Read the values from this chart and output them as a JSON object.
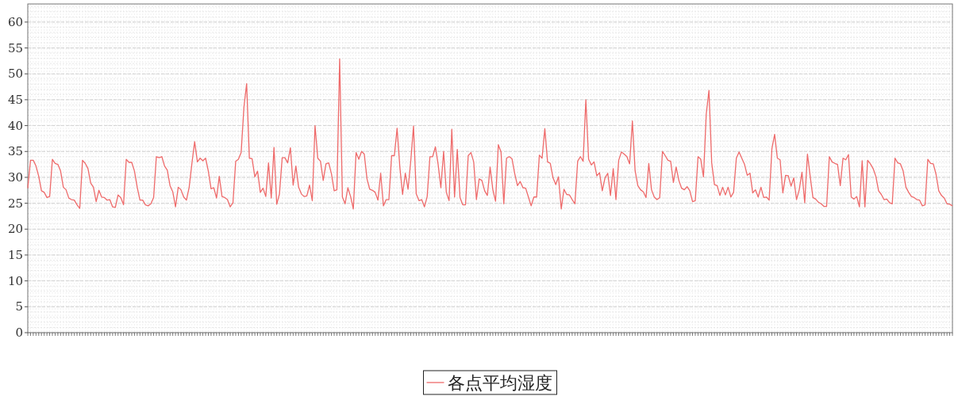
{
  "chart_data": {
    "type": "line",
    "categories": [
      null,
      null,
      null,
      null,
      null,
      null,
      null,
      null,
      null,
      null,
      null,
      null,
      null,
      null,
      null,
      null,
      null,
      null,
      null,
      null,
      null,
      null,
      null,
      null,
      null,
      null,
      null,
      null,
      null,
      null,
      null,
      null,
      null,
      null,
      null,
      null,
      null,
      null,
      null,
      null,
      null,
      null,
      null,
      null,
      null,
      null,
      null,
      null,
      null,
      null,
      null,
      null,
      null,
      null,
      null,
      null,
      null,
      null,
      null,
      null,
      null,
      null,
      null,
      null,
      null,
      null,
      null,
      null,
      null,
      null,
      null,
      null,
      null,
      null,
      null,
      null,
      null,
      null,
      null,
      null,
      null,
      null,
      null,
      null,
      null,
      null,
      null,
      null,
      null,
      null,
      null,
      null,
      null,
      null,
      null,
      null,
      null,
      null,
      null,
      null,
      null,
      null,
      null,
      null,
      null,
      null,
      null,
      null,
      null,
      null,
      null,
      null,
      null,
      null,
      null,
      null,
      null,
      null,
      null,
      null,
      null,
      null,
      null,
      null,
      null,
      null,
      null,
      null,
      null,
      null,
      null,
      null,
      null,
      null,
      null,
      null,
      null,
      null,
      null,
      null,
      null,
      null,
      null,
      null,
      null,
      null,
      null,
      null,
      null,
      null,
      null,
      null,
      null,
      null,
      null,
      null,
      null,
      null,
      null,
      null,
      null,
      null,
      null,
      null,
      null,
      null,
      null,
      null,
      null,
      null,
      null,
      null,
      null,
      null,
      null,
      null,
      null,
      null,
      null,
      null,
      null,
      null,
      null,
      null,
      null,
      null,
      null,
      null,
      null,
      null,
      null,
      null,
      null,
      null,
      null,
      null,
      null,
      null,
      null,
      null,
      null,
      null,
      null,
      null,
      null,
      null,
      null,
      null,
      null,
      null,
      null,
      null,
      null,
      null,
      null,
      null,
      null,
      null,
      null,
      null,
      null,
      null,
      null,
      null,
      null,
      null,
      null,
      null,
      null,
      null,
      null,
      null,
      null,
      null,
      null,
      null,
      null,
      null,
      null,
      null,
      null,
      null,
      null,
      null,
      null,
      null,
      null,
      null,
      null,
      null,
      null,
      null,
      null,
      null,
      null,
      null,
      null,
      null,
      null,
      null,
      null,
      null,
      null,
      null,
      null,
      null,
      null,
      null,
      null,
      null,
      null,
      null,
      null,
      null,
      null,
      null,
      null,
      null,
      null,
      null,
      null,
      null,
      null,
      null,
      null,
      null,
      null,
      null,
      null,
      null,
      null,
      null,
      null,
      null,
      null,
      null,
      null,
      null,
      null,
      null,
      null,
      null,
      null,
      null,
      null,
      null,
      null,
      null,
      null,
      null,
      null,
      null,
      null,
      null,
      null,
      null,
      null,
      null,
      null,
      null,
      null,
      null,
      null,
      null,
      null,
      null,
      null,
      null,
      null,
      null,
      null,
      null,
      null,
      null,
      null,
      null,
      null,
      null,
      null
    ],
    "series": [
      {
        "name": "各点平均湿度",
        "color": "#ee6a6a",
        "values": [
          27.9,
          33.3,
          33.3,
          32.2,
          30.2,
          27.4,
          27.1,
          26.1,
          26.3,
          33.5,
          32.7,
          32.5,
          31.2,
          28.1,
          27.6,
          26.0,
          25.7,
          25.6,
          24.7,
          24.0,
          33.3,
          32.7,
          31.7,
          28.9,
          28.1,
          25.3,
          27.5,
          26.2,
          26.1,
          25.6,
          25.7,
          24.3,
          24.2,
          26.6,
          26.1,
          24.7,
          33.5,
          32.9,
          32.9,
          31.2,
          28.1,
          25.6,
          25.6,
          24.7,
          24.5,
          24.9,
          26.1,
          34.0,
          33.8,
          34.0,
          32.2,
          31.4,
          28.4,
          27.2,
          24.3,
          28.1,
          27.6,
          26.2,
          25.6,
          28.1,
          32.7,
          36.9,
          33.0,
          33.7,
          33.2,
          33.7,
          31.2,
          27.8,
          28.0,
          26.0,
          30.2,
          26.3,
          26.1,
          25.7,
          24.3,
          25.1,
          33.1,
          33.5,
          34.8,
          43.5,
          48.1,
          33.7,
          33.6,
          30.1,
          31.2,
          27.1,
          27.9,
          26.3,
          32.8,
          26.0,
          35.8,
          24.8,
          26.8,
          33.8,
          33.8,
          32.8,
          35.7,
          28.5,
          32.2,
          28.1,
          26.8,
          26.3,
          26.4,
          28.5,
          25.5,
          40.0,
          33.7,
          33.1,
          29.4,
          32.6,
          32.8,
          30.7,
          27.4,
          27.6,
          52.9,
          26.2,
          24.9,
          28.0,
          26.3,
          23.9,
          34.8,
          33.5,
          35.0,
          34.5,
          29.7,
          27.7,
          27.5,
          27.1,
          25.6,
          30.8,
          24.5,
          25.7,
          25.7,
          34.2,
          34.2,
          39.5,
          32.0,
          26.7,
          30.8,
          27.7,
          33.2,
          39.9,
          26.8,
          25.5,
          25.7,
          24.3,
          26.3,
          34.0,
          34.0,
          35.9,
          32.5,
          28.0,
          35.0,
          27.1,
          25.5,
          39.3,
          26.2,
          35.4,
          26.1,
          24.7,
          24.7,
          34.2,
          34.8,
          33.0,
          25.7,
          29.7,
          29.4,
          27.4,
          26.5,
          32.0,
          27.6,
          25.4,
          36.3,
          34.9,
          24.9,
          33.7,
          34.0,
          33.6,
          30.7,
          28.4,
          29.2,
          28.0,
          27.9,
          26.2,
          24.5,
          26.2,
          26.2,
          34.3,
          33.7,
          39.4,
          33.0,
          32.7,
          29.9,
          28.6,
          30.1,
          23.9,
          27.7,
          26.7,
          26.6,
          25.7,
          24.9,
          33.1,
          34.0,
          33.1,
          45.0,
          33.5,
          32.4,
          33.0,
          30.3,
          30.9,
          27.4,
          29.9,
          30.8,
          26.5,
          31.7,
          25.7,
          33.3,
          34.9,
          34.5,
          34.0,
          32.6,
          40.9,
          31.3,
          28.4,
          27.6,
          27.2,
          26.1,
          32.7,
          27.6,
          26.2,
          25.7,
          26.1,
          35.0,
          34.2,
          33.3,
          33.1,
          29.0,
          32.0,
          29.4,
          27.9,
          27.6,
          28.2,
          27.4,
          25.3,
          25.5,
          34.0,
          33.5,
          30.1,
          42.2,
          46.8,
          32.8,
          28.6,
          28.4,
          26.5,
          28.1,
          26.6,
          28.1,
          26.2,
          27.1,
          33.7,
          34.9,
          33.7,
          32.5,
          30.4,
          30.8,
          27.0,
          27.6,
          26.2,
          28.1,
          26.1,
          26.2,
          25.6,
          35.5,
          38.3,
          33.7,
          33.4,
          27.0,
          30.4,
          30.3,
          28.3,
          29.9,
          25.7,
          27.6,
          31.0,
          25.1,
          34.5,
          30.2,
          26.1,
          25.8,
          25.2,
          24.9,
          24.4,
          24.4,
          34.0,
          33.0,
          32.7,
          32.5,
          28.4,
          33.7,
          33.4,
          34.4,
          26.2,
          25.8,
          26.3,
          24.3,
          33.2,
          24.3,
          33.3,
          32.6,
          31.7,
          30.2,
          27.4,
          26.7,
          25.7,
          25.8,
          25.1,
          24.9,
          33.7,
          32.8,
          32.6,
          31.2,
          28.1,
          27.1,
          26.3,
          26.1,
          25.7,
          25.6,
          24.5,
          24.7,
          33.5,
          32.7,
          32.6,
          30.6,
          27.4,
          26.5,
          26.0,
          24.9,
          24.8,
          24.5
        ]
      }
    ],
    "ylim": [
      0,
      63.5
    ],
    "yticks": [
      0,
      5,
      10,
      15,
      20,
      25,
      30,
      35,
      40,
      45,
      50,
      55,
      60
    ],
    "grid": true,
    "legend": "bottom"
  }
}
